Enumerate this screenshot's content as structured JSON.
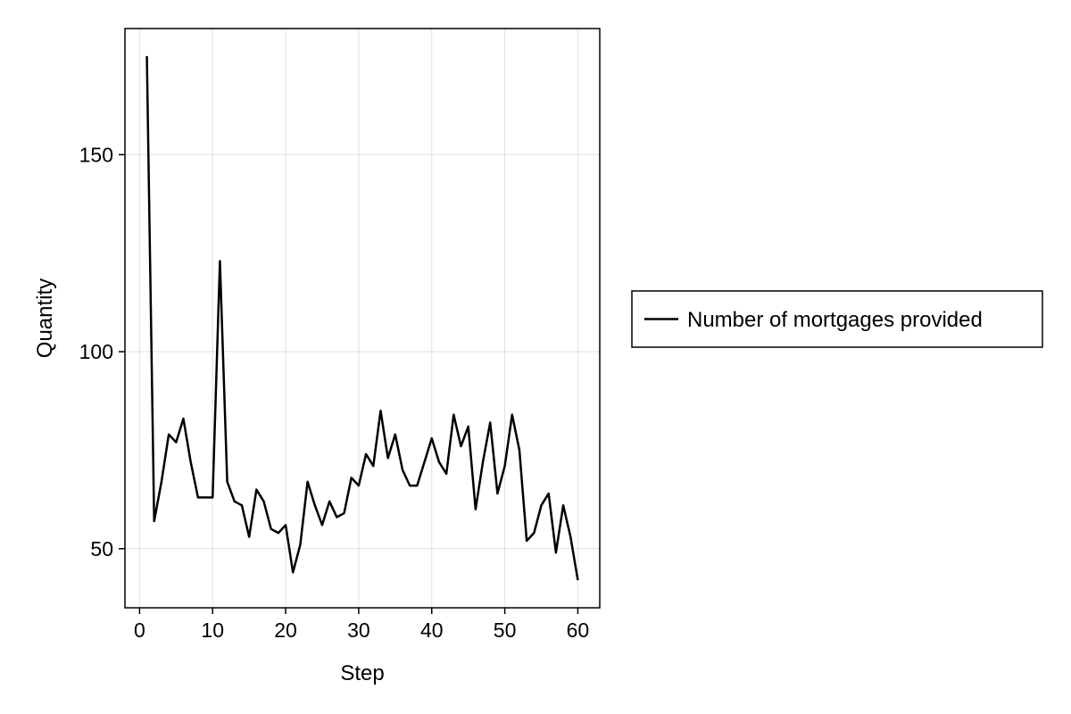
{
  "chart_data": {
    "type": "line",
    "title": "",
    "xlabel": "Step",
    "ylabel": "Quantity",
    "xlim": [
      -2,
      63
    ],
    "ylim": [
      35,
      182
    ],
    "xticks": [
      0,
      10,
      20,
      30,
      40,
      50,
      60
    ],
    "yticks": [
      50,
      100,
      150
    ],
    "grid": true,
    "legend_position": "right",
    "series": [
      {
        "name": "Number of mortgages provided",
        "color": "#000000",
        "x": [
          1,
          2,
          3,
          4,
          5,
          6,
          7,
          8,
          9,
          10,
          11,
          12,
          13,
          14,
          15,
          16,
          17,
          18,
          19,
          20,
          21,
          22,
          23,
          24,
          25,
          26,
          27,
          28,
          29,
          30,
          31,
          32,
          33,
          34,
          35,
          36,
          37,
          38,
          39,
          40,
          41,
          42,
          43,
          44,
          45,
          46,
          47,
          48,
          49,
          50,
          51,
          52,
          53,
          54,
          55,
          56,
          57,
          58,
          59,
          60
        ],
        "y": [
          175,
          57,
          67,
          79,
          77,
          83,
          72,
          63,
          63,
          63,
          123,
          67,
          62,
          61,
          53,
          65,
          62,
          55,
          54,
          56,
          44,
          51,
          67,
          61,
          56,
          62,
          58,
          59,
          68,
          66,
          74,
          71,
          85,
          73,
          79,
          70,
          66,
          66,
          72,
          78,
          72,
          69,
          84,
          76,
          81,
          60,
          72,
          82,
          64,
          71,
          84,
          75,
          52,
          54,
          61,
          64,
          49,
          61,
          53,
          42
        ]
      }
    ]
  }
}
